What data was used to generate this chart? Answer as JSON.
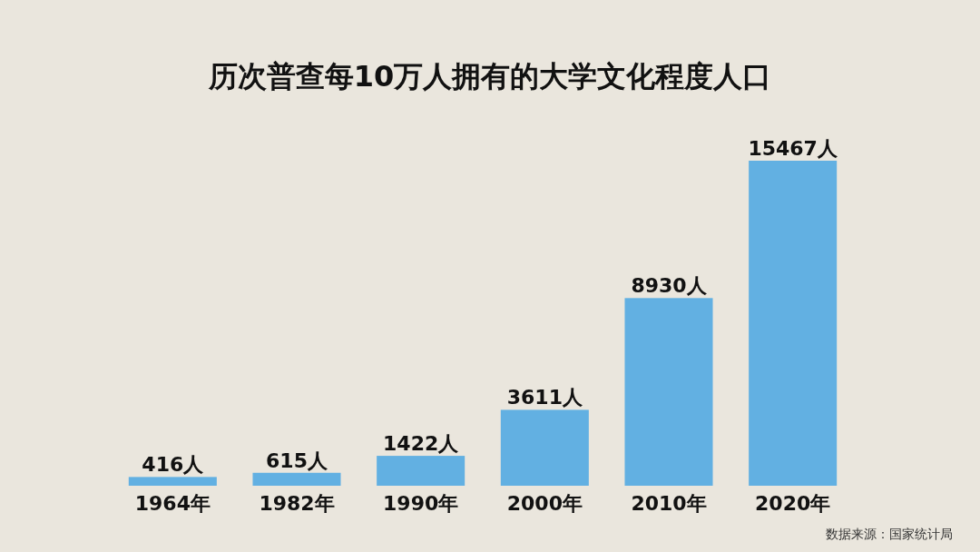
{
  "chart_data": {
    "type": "bar",
    "title": "历次普查每10万人拥有的大学文化程度人口",
    "categories": [
      "1964年",
      "1982年",
      "1990年",
      "2000年",
      "2010年",
      "2020年"
    ],
    "values": [
      416,
      615,
      1422,
      3611,
      8930,
      15467
    ],
    "value_labels": [
      "416人",
      "615人",
      "1422人",
      "3611人",
      "8930人",
      "15467人"
    ],
    "color": "#62b0e2",
    "annotations": [
      "数据来源：国家统计局"
    ]
  }
}
